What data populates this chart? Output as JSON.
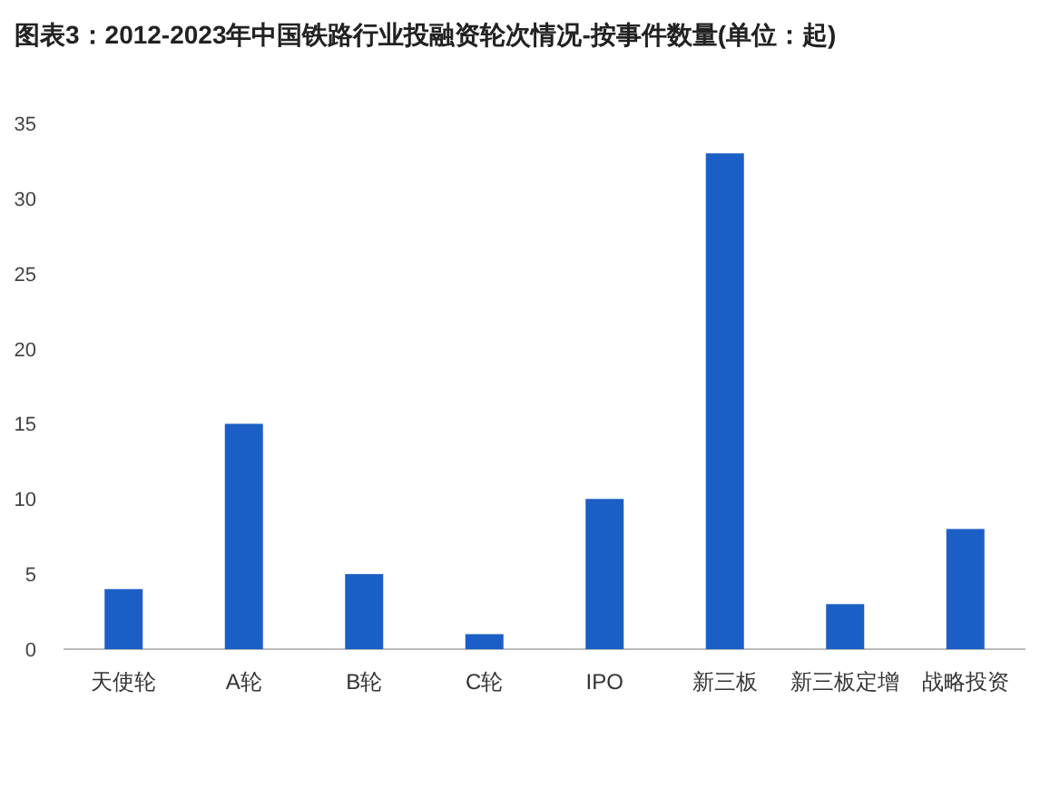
{
  "chart_data": {
    "type": "bar",
    "title": "图表3：2012-2023年中国铁路行业投融资轮次情况-按事件数量(单位：起)",
    "categories": [
      "天使轮",
      "A轮",
      "B轮",
      "C轮",
      "IPO",
      "新三板",
      "新三板定增",
      "战略投资"
    ],
    "values": [
      4,
      15,
      5,
      1,
      10,
      33,
      3,
      8
    ],
    "color": "#1b5fc6",
    "ylim": [
      0,
      35
    ],
    "yticks": [
      0,
      5,
      10,
      15,
      20,
      25,
      30,
      35
    ],
    "grid": false
  }
}
